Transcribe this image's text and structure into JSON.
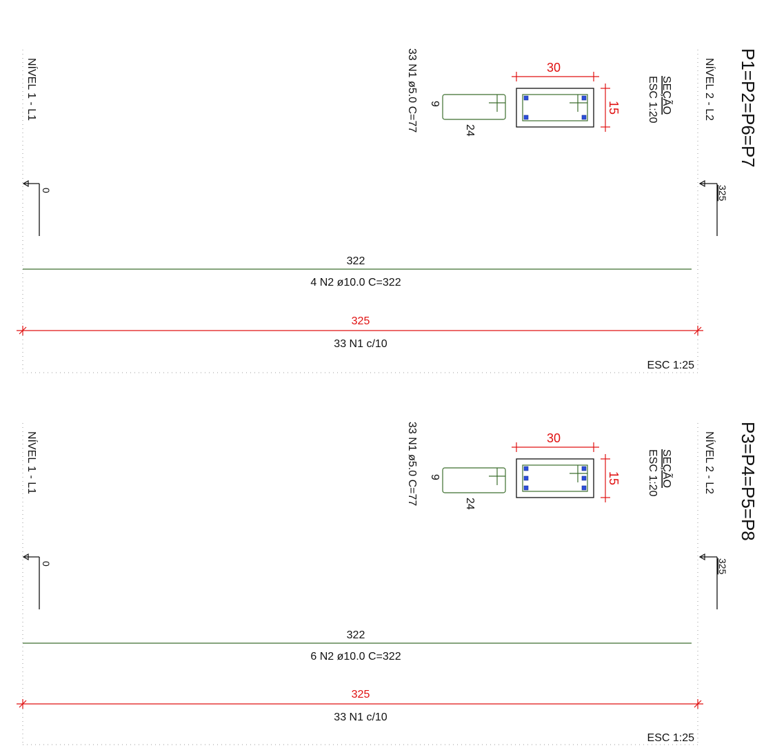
{
  "sheets": [
    {
      "title": "P1=P2=P6=P7",
      "section_title": "SEÇÃO",
      "section_scale": "ESC 1:20",
      "level_top": "NÍVEL 2 - L2",
      "level_top_value": "325",
      "level_bottom": "NÍVEL 1 - L1",
      "level_bottom_value": "0",
      "section_width": "30",
      "section_height": "15",
      "stirrup_label": "33 N1 ø5.0 C=77",
      "stirrup_dim_short": "9",
      "stirrup_dim_long": "24",
      "long_bar_length": "322",
      "long_bar_label": "4 N2 ø10.0 C=322",
      "height_dim": "325",
      "stirrup_spacing": "33 N1 c/10",
      "drawing_scale": "ESC 1:25",
      "bars_per_side": 2
    },
    {
      "title": "P3=P4=P5=P8",
      "section_title": "SEÇÃO",
      "section_scale": "ESC 1:20",
      "level_top": "NÍVEL 2 - L2",
      "level_top_value": "325",
      "level_bottom": "NÍVEL 1 - L1",
      "level_bottom_value": "0",
      "section_width": "30",
      "section_height": "15",
      "stirrup_label": "33 N1 ø5.0 C=77",
      "stirrup_dim_short": "9",
      "stirrup_dim_long": "24",
      "long_bar_length": "322",
      "long_bar_label": "6 N2 ø10.0 C=322",
      "height_dim": "325",
      "stirrup_spacing": "33 N1 c/10",
      "drawing_scale": "ESC 1:25",
      "bars_per_side": 3
    }
  ],
  "colors": {
    "dimension": "#e01010",
    "rebar": "#3c6e2d",
    "bar_section": "#2c4fd9",
    "text": "#111111"
  }
}
